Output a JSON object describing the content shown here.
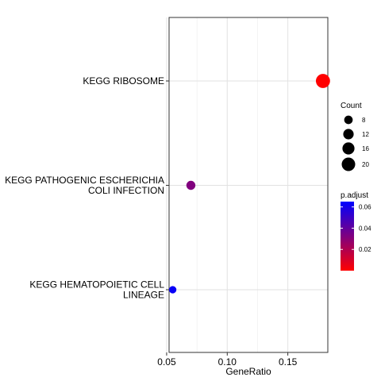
{
  "chart_data": {
    "type": "scatter",
    "xlabel": "GeneRatio",
    "ylabel": "",
    "xlim": [
      0.052,
      0.183
    ],
    "x_ticks": [
      0.05,
      0.1,
      0.15
    ],
    "x_tick_labels": [
      "0.05",
      "0.10",
      "0.15"
    ],
    "grid": true,
    "categories": [
      "KEGG RIBOSOME",
      "KEGG PATHOGENIC ESCHERICHIA\nCOLI INFECTION",
      "KEGG HEMATOPOIETIC CELL\nLINEAGE"
    ],
    "points": [
      {
        "category": "KEGG RIBOSOME",
        "gene_ratio": 0.179,
        "count": 22,
        "p_adjust": 0.0001
      },
      {
        "category": "KEGG PATHOGENIC ESCHERICHIA\nCOLI INFECTION",
        "gene_ratio": 0.07,
        "count": 9,
        "p_adjust": 0.032
      },
      {
        "category": "KEGG HEMATOPOIETIC CELL\nLINEAGE",
        "gene_ratio": 0.055,
        "count": 6,
        "p_adjust": 0.063
      }
    ],
    "size_legend": {
      "title": "Count",
      "breaks": [
        8,
        12,
        16,
        20
      ],
      "labels": [
        "8",
        "12",
        "16",
        "20"
      ]
    },
    "color_legend": {
      "title": "p.adjust",
      "range": [
        0.0,
        0.065
      ],
      "breaks": [
        0.02,
        0.04,
        0.06
      ],
      "labels": [
        "0.02",
        "0.04",
        "0.06"
      ],
      "low_color": "#ff0000",
      "high_color": "#0000ff"
    },
    "legend_position": "right"
  }
}
